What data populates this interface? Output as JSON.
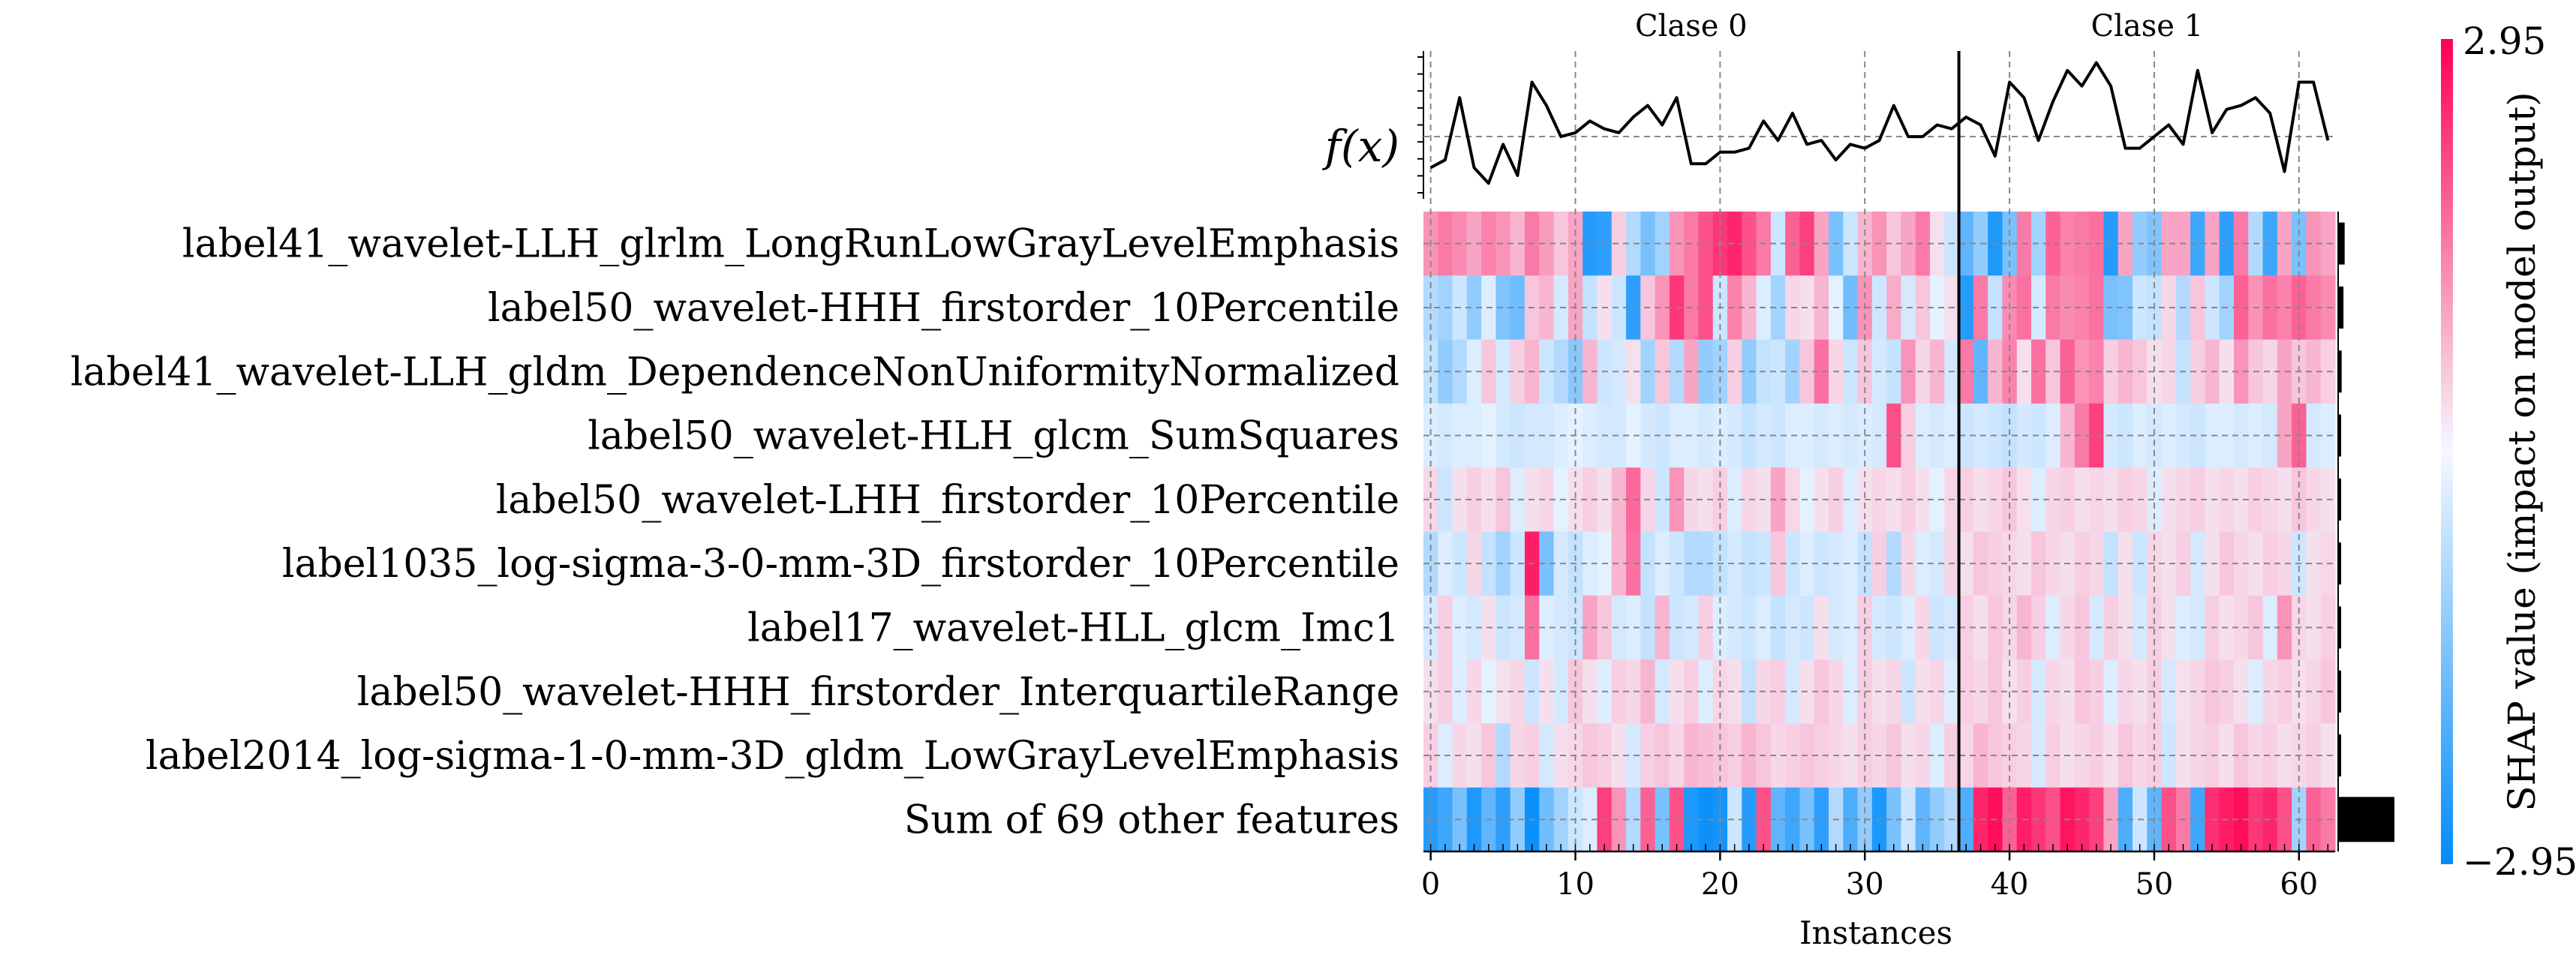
{
  "chart_data": {
    "type": "heatmap",
    "title": "",
    "xlabel": "Instances",
    "ylabel": "",
    "group_labels": [
      "Clase 0",
      "Clase 1"
    ],
    "group_split": 36.5,
    "fx_label": "f(x)",
    "x_ticks": [
      0,
      10,
      20,
      30,
      40,
      50,
      60
    ],
    "n_instances": 63,
    "xlim": [
      -0.5,
      62.5
    ],
    "features": [
      "label41_wavelet-LLH_glrlm_LongRunLowGrayLevelEmphasis",
      "label50_wavelet-HHH_firstorder_10Percentile",
      "label41_wavelet-LLH_gldm_DependenceNonUniformityNormalized",
      "label50_wavelet-HLH_glcm_SumSquares",
      "label50_wavelet-LHH_firstorder_10Percentile",
      "label1035_log-sigma-3-0-mm-3D_firstorder_10Percentile",
      "label17_wavelet-HLL_glcm_Imc1",
      "label50_wavelet-HHH_firstorder_InterquartileRange",
      "label2014_log-sigma-1-0-mm-3D_gldm_LowGrayLevelEmphasis",
      "Sum of 69 other features"
    ],
    "importance": [
      0.11,
      0.09,
      0.06,
      0.04,
      0.03,
      0.03,
      0.03,
      0.03,
      0.03,
      0.95
    ],
    "fx": [
      -0.35,
      -0.25,
      0.55,
      -0.35,
      -0.55,
      -0.05,
      -0.45,
      0.75,
      0.45,
      0.05,
      0.1,
      0.25,
      0.15,
      0.1,
      0.3,
      0.45,
      0.2,
      0.55,
      -0.3,
      -0.3,
      -0.15,
      -0.15,
      -0.1,
      0.25,
      0.0,
      0.35,
      -0.05,
      0.0,
      -0.25,
      -0.05,
      -0.1,
      0.0,
      0.45,
      0.05,
      0.05,
      0.2,
      0.15,
      0.3,
      0.2,
      -0.2,
      0.75,
      0.55,
      0.0,
      0.5,
      0.9,
      0.7,
      1.0,
      0.7,
      -0.1,
      -0.1,
      0.05,
      0.2,
      -0.05,
      0.9,
      0.1,
      0.4,
      0.45,
      0.55,
      0.35,
      -0.4,
      0.75,
      0.75,
      0.0
    ],
    "fx_range": [
      -0.75,
      1.15
    ],
    "colorbar": {
      "label": "SHAP value (impact on model output)",
      "max_label": "2.95",
      "min_label": "−2.95",
      "vmin": -2.95,
      "vmax": 2.95
    },
    "shap_values": [
      [
        1.2,
        1.5,
        1.3,
        1.0,
        1.4,
        1.2,
        0.8,
        1.5,
        1.1,
        0.6,
        1.0,
        -2.5,
        -2.4,
        0.5,
        -0.8,
        -1.5,
        -1.0,
        1.2,
        1.5,
        2.0,
        2.3,
        2.5,
        2.0,
        1.5,
        -0.5,
        1.8,
        2.2,
        1.0,
        -1.5,
        -0.5,
        0.8,
        1.2,
        0.6,
        1.0,
        1.5,
        0.3,
        -0.5,
        -1.8,
        -1.2,
        -2.6,
        -1.5,
        1.5,
        -1.0,
        1.8,
        1.4,
        1.5,
        1.6,
        -2.5,
        1.0,
        -1.2,
        -1.4,
        1.0,
        1.0,
        -2.2,
        1.0,
        -2.4,
        1.5,
        -0.8,
        -2.2,
        1.0,
        -1.5,
        1.2,
        1.0
      ],
      [
        -0.8,
        -1.0,
        -0.5,
        -1.2,
        -0.3,
        -1.4,
        -1.6,
        0.6,
        0.8,
        -0.4,
        1.0,
        -0.6,
        0.3,
        -0.5,
        -2.4,
        0.6,
        1.2,
        2.3,
        1.5,
        2.0,
        -0.5,
        1.4,
        0.8,
        -0.3,
        -1.0,
        0.4,
        0.3,
        0.8,
        -0.2,
        -1.6,
        1.2,
        -0.5,
        0.9,
        -0.4,
        0.6,
        -0.2,
        0.3,
        -2.5,
        1.5,
        -0.6,
        1.3,
        1.6,
        -0.4,
        1.5,
        1.3,
        1.4,
        1.6,
        -1.5,
        -1.4,
        -0.5,
        -0.6,
        0.4,
        -0.8,
        0.6,
        -0.5,
        -1.0,
        1.8,
        1.2,
        1.6,
        1.4,
        1.8,
        1.5,
        1.3
      ],
      [
        -0.6,
        -1.2,
        -0.8,
        -0.3,
        0.6,
        -0.4,
        0.5,
        0.8,
        -0.5,
        -0.8,
        -1.3,
        0.8,
        -0.5,
        -0.4,
        0.3,
        -1.0,
        0.6,
        -0.8,
        1.0,
        -1.2,
        -1.0,
        0.5,
        -1.2,
        -0.6,
        -0.5,
        -1.0,
        0.6,
        1.6,
        0.4,
        -0.5,
        0.6,
        -0.4,
        -0.6,
        1.2,
        0.4,
        0.8,
        -0.4,
        1.5,
        -1.8,
        0.8,
        1.4,
        0.3,
        1.6,
        0.6,
        1.8,
        1.2,
        1.4,
        0.5,
        0.8,
        0.6,
        0.3,
        0.4,
        -0.6,
        0.5,
        0.8,
        0.3,
        1.2,
        0.6,
        0.4,
        1.0,
        0.6,
        0.8,
        0.5
      ],
      [
        -0.3,
        -0.4,
        -0.3,
        -0.3,
        -0.2,
        -0.4,
        -0.5,
        -0.4,
        -0.4,
        -0.3,
        -0.2,
        -0.3,
        -0.4,
        -0.4,
        -0.2,
        -0.4,
        -0.5,
        -0.3,
        -0.3,
        -0.4,
        -0.3,
        -0.4,
        -0.6,
        -0.4,
        -0.5,
        -0.3,
        -0.3,
        -0.4,
        -0.3,
        -0.4,
        -0.3,
        -0.4,
        2.0,
        0.5,
        -0.3,
        -0.4,
        -0.3,
        -0.5,
        -0.4,
        -0.5,
        -0.6,
        -0.4,
        -0.5,
        -0.3,
        0.8,
        1.5,
        2.2,
        -0.4,
        -0.5,
        -0.3,
        -0.4,
        -0.3,
        -0.4,
        -0.5,
        -0.3,
        -0.3,
        -0.4,
        -0.3,
        -0.4,
        1.0,
        1.8,
        -0.4,
        -0.3
      ],
      [
        0.4,
        -0.5,
        0.3,
        0.5,
        0.3,
        0.6,
        -0.3,
        0.3,
        0.4,
        -0.2,
        0.3,
        0.5,
        0.3,
        0.8,
        1.7,
        0.4,
        -0.5,
        1.2,
        0.4,
        0.3,
        0.5,
        -0.3,
        0.4,
        0.3,
        1.0,
        0.4,
        -0.2,
        0.3,
        0.5,
        -0.3,
        0.3,
        0.4,
        0.3,
        0.5,
        0.3,
        -0.2,
        0.4,
        0.5,
        0.3,
        0.4,
        0.6,
        0.3,
        -0.3,
        0.4,
        0.5,
        0.3,
        0.4,
        0.3,
        0.5,
        0.4,
        -0.3,
        0.3,
        0.4,
        0.5,
        0.3,
        0.4,
        0.3,
        0.5,
        0.4,
        0.3,
        0.6,
        0.4,
        0.3
      ],
      [
        -0.8,
        -0.3,
        -0.5,
        0.4,
        -0.6,
        -1.0,
        -0.5,
        2.6,
        -1.5,
        -0.4,
        -0.6,
        -0.3,
        -0.2,
        0.8,
        1.6,
        -0.6,
        -0.3,
        -0.5,
        -0.8,
        -0.8,
        -0.6,
        -0.4,
        -0.6,
        -0.5,
        0.6,
        -0.5,
        -0.3,
        -0.5,
        -0.4,
        -0.3,
        -0.6,
        0.5,
        -0.8,
        0.4,
        -0.3,
        -0.4,
        0.4,
        0.3,
        0.6,
        0.5,
        0.4,
        0.3,
        0.6,
        0.4,
        0.3,
        0.5,
        0.4,
        -0.6,
        0.3,
        -0.5,
        0.4,
        0.3,
        0.5,
        -0.4,
        0.3,
        0.6,
        0.4,
        0.3,
        0.5,
        0.4,
        -0.5,
        0.3,
        0.4
      ],
      [
        -0.4,
        0.5,
        -0.3,
        -0.4,
        0.3,
        -0.5,
        -0.4,
        1.6,
        -0.3,
        -0.4,
        -0.5,
        1.0,
        0.6,
        -0.4,
        -0.3,
        -0.6,
        0.8,
        -0.5,
        -0.4,
        0.5,
        -0.3,
        -0.4,
        -0.5,
        -0.3,
        -0.6,
        -0.4,
        -0.5,
        0.3,
        -0.4,
        -0.3,
        0.5,
        -0.4,
        -0.5,
        -0.3,
        0.4,
        -0.5,
        -0.4,
        0.5,
        0.3,
        0.6,
        0.4,
        0.8,
        0.5,
        -0.3,
        0.4,
        0.6,
        -0.4,
        0.5,
        0.3,
        -0.4,
        0.5,
        0.3,
        -0.3,
        -0.4,
        0.5,
        0.3,
        0.4,
        0.6,
        -0.3,
        1.2,
        0.4,
        0.3,
        0.5
      ],
      [
        0.3,
        0.5,
        -0.3,
        0.4,
        -0.2,
        0.3,
        0.4,
        -0.5,
        0.3,
        -0.4,
        0.6,
        0.3,
        -0.3,
        0.5,
        0.4,
        0.8,
        -0.4,
        0.3,
        0.5,
        -0.3,
        0.4,
        0.3,
        -0.6,
        0.4,
        0.5,
        -0.4,
        0.3,
        0.6,
        0.4,
        -0.3,
        0.5,
        0.3,
        0.4,
        -0.5,
        0.3,
        0.4,
        -0.3,
        0.5,
        0.4,
        0.6,
        0.3,
        0.5,
        -0.4,
        0.4,
        0.3,
        0.6,
        0.5,
        -0.3,
        0.4,
        0.3,
        0.5,
        -0.4,
        0.3,
        0.4,
        0.6,
        0.5,
        0.3,
        -0.3,
        0.4,
        0.5,
        0.3,
        0.4,
        0.6
      ],
      [
        0.5,
        -0.3,
        0.4,
        0.3,
        0.6,
        -0.8,
        0.4,
        0.5,
        -0.4,
        0.3,
        0.4,
        0.6,
        0.5,
        0.3,
        -0.4,
        0.5,
        0.6,
        0.4,
        0.8,
        0.7,
        0.6,
        0.5,
        0.8,
        0.6,
        0.4,
        0.5,
        0.6,
        0.5,
        0.4,
        0.3,
        0.5,
        0.4,
        0.6,
        0.3,
        0.4,
        -0.3,
        0.5,
        0.4,
        0.8,
        0.6,
        0.5,
        0.4,
        -0.4,
        0.5,
        0.3,
        0.4,
        0.5,
        0.3,
        0.6,
        0.4,
        0.5,
        -0.5,
        0.3,
        0.4,
        0.5,
        0.3,
        0.6,
        0.4,
        0.5,
        0.3,
        0.4,
        0.5,
        0.3
      ],
      [
        -2.5,
        -2.2,
        -1.5,
        -2.6,
        -1.8,
        -2.4,
        -1.2,
        -2.8,
        -1.6,
        -1.0,
        -0.5,
        -0.3,
        2.2,
        1.2,
        -0.8,
        1.8,
        -1.5,
        2.0,
        -2.6,
        -2.8,
        -2.7,
        -0.5,
        -2.5,
        2.0,
        -1.8,
        -2.2,
        -1.5,
        -2.4,
        -0.8,
        -2.0,
        -1.2,
        -2.6,
        -1.5,
        -0.5,
        -1.8,
        -1.2,
        -0.8,
        -2.0,
        2.5,
        2.8,
        1.8,
        2.6,
        2.3,
        2.0,
        2.7,
        2.5,
        2.2,
        1.0,
        -2.0,
        -0.5,
        -1.8,
        2.0,
        1.5,
        -2.2,
        2.4,
        2.6,
        2.8,
        2.3,
        2.5,
        2.0,
        -1.0,
        1.8,
        1.5
      ]
    ]
  }
}
